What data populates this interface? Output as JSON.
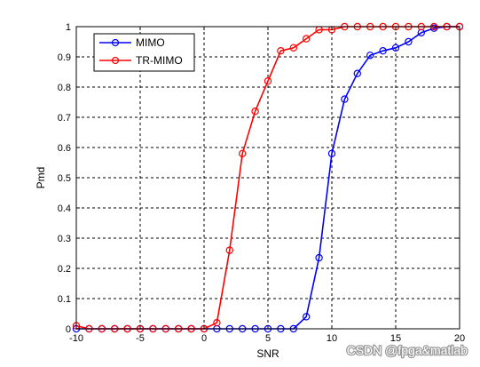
{
  "chart_data": {
    "type": "line",
    "xlabel": "SNR",
    "ylabel": "Pmd",
    "xlim": [
      -10,
      20
    ],
    "ylim": [
      0,
      1
    ],
    "xticks": [
      -10,
      -5,
      0,
      5,
      10,
      15,
      20
    ],
    "yticks": [
      0,
      0.1,
      0.2,
      0.3,
      0.4,
      0.5,
      0.6,
      0.7,
      0.8,
      0.9,
      1
    ],
    "grid": true,
    "legend_position": "top-left",
    "x": [
      -10,
      -9,
      -8,
      -7,
      -6,
      -5,
      -4,
      -3,
      -2,
      -1,
      0,
      1,
      2,
      3,
      4,
      5,
      6,
      7,
      8,
      9,
      10,
      11,
      12,
      13,
      14,
      15,
      16,
      17,
      18,
      19,
      20
    ],
    "series": [
      {
        "name": "MIMO",
        "color": "#0000ff",
        "values": [
          0,
          0,
          0,
          0,
          0,
          0,
          0,
          0,
          0,
          0,
          0,
          0,
          0,
          0,
          0,
          0,
          0,
          0,
          0.04,
          0.235,
          0.58,
          0.76,
          0.845,
          0.905,
          0.92,
          0.93,
          0.95,
          0.98,
          0.995,
          1,
          1
        ]
      },
      {
        "name": "TR-MIMO",
        "color": "#ff0000",
        "values": [
          0.01,
          0,
          0,
          0,
          0,
          0,
          0,
          0,
          0,
          0,
          0,
          0.02,
          0.26,
          0.58,
          0.72,
          0.82,
          0.92,
          0.93,
          0.96,
          0.99,
          0.99,
          1,
          1,
          1,
          1,
          1,
          1,
          1,
          1,
          1,
          1
        ]
      }
    ]
  },
  "watermark": "CSDN @fpga&matlab"
}
